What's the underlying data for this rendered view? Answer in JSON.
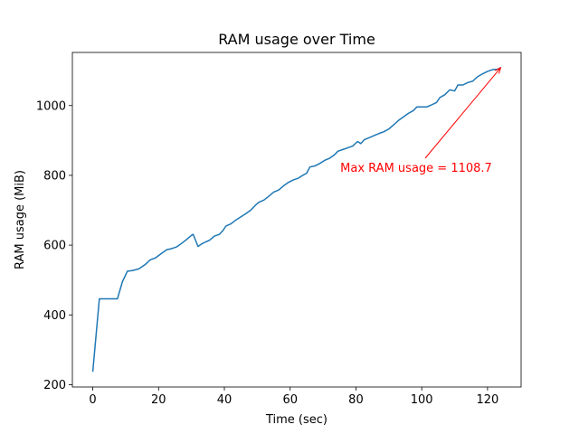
{
  "chart_data": {
    "type": "line",
    "title": "RAM usage over Time",
    "x_label": "Time (sec)",
    "y_label": "RAM usage (MiB)",
    "color": "#1f77b4",
    "x": [
      0,
      2,
      4,
      6,
      7.5,
      9,
      10.5,
      12,
      14,
      16,
      17.5,
      19,
      21,
      22.5,
      24,
      25.5,
      27,
      28.5,
      30,
      30.5,
      32,
      33,
      34.5,
      35.5,
      37,
      38.5,
      39.5,
      40.5,
      42,
      43.5,
      45,
      46.5,
      48,
      49.5,
      50.5,
      52,
      53.5,
      55,
      56.5,
      58,
      59.5,
      61,
      62.5,
      64,
      65,
      66,
      67.5,
      69,
      70.5,
      72,
      73.5,
      74.5,
      76,
      77.5,
      79,
      80.5,
      81.5,
      82.5,
      84,
      85.5,
      87,
      88.5,
      90,
      91.5,
      93,
      94.5,
      96,
      97.5,
      98.5,
      100,
      101.5,
      103,
      104.5,
      105.5,
      107,
      108.5,
      110,
      111,
      112.5,
      114,
      115.5,
      117,
      118.5,
      120,
      121.5,
      123,
      124
    ],
    "values": [
      237,
      446,
      446,
      446,
      446,
      495,
      525,
      527,
      532,
      545,
      558,
      563,
      577,
      587,
      590,
      595,
      605,
      616,
      628,
      631,
      596,
      603,
      610,
      614,
      626,
      631,
      641,
      655,
      661,
      672,
      681,
      690,
      700,
      715,
      723,
      729,
      740,
      752,
      758,
      770,
      780,
      787,
      792,
      801,
      806,
      824,
      827,
      834,
      843,
      849,
      859,
      869,
      874,
      879,
      884,
      897,
      891,
      902,
      908,
      914,
      920,
      925,
      933,
      945,
      958,
      968,
      978,
      986,
      996,
      996,
      996,
      1002,
      1009,
      1023,
      1031,
      1045,
      1042,
      1059,
      1059,
      1066,
      1070,
      1083,
      1091,
      1098,
      1103,
      1104,
      1108.7
    ],
    "xlim": [
      -6.2,
      130.2
    ],
    "ylim": [
      193.4,
      1152.3
    ],
    "xticks": [
      0,
      20,
      40,
      60,
      80,
      100,
      120
    ],
    "yticks": [
      200,
      400,
      600,
      800,
      1000
    ],
    "grid": false,
    "annotation": {
      "text": "Max RAM usage = 1108.7",
      "color": "#ff0000"
    }
  }
}
